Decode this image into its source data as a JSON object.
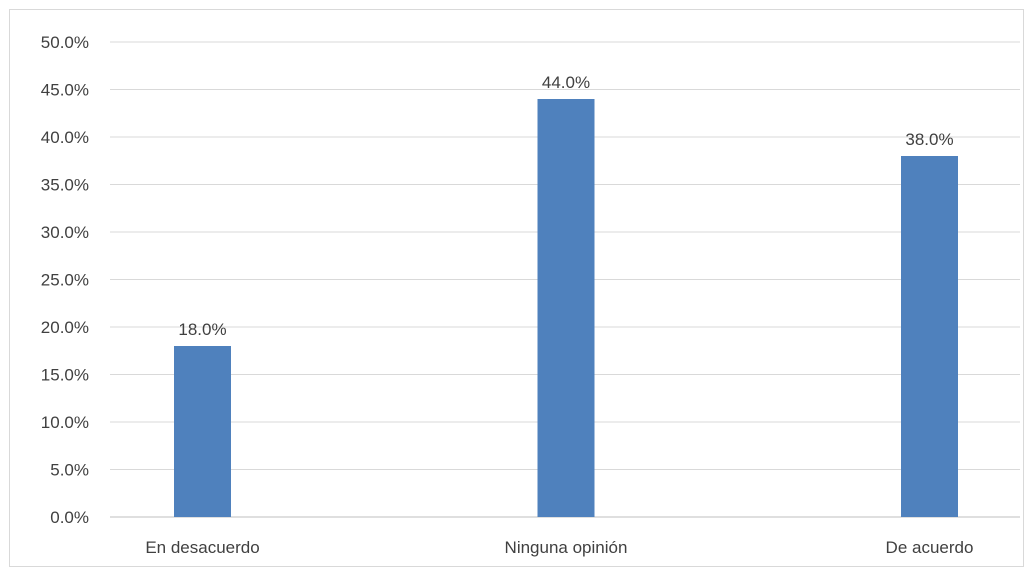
{
  "chart_data": {
    "type": "bar",
    "categories": [
      "En desacuerdo",
      "Ninguna opinión",
      "De acuerdo"
    ],
    "values": [
      18.0,
      44.0,
      38.0
    ],
    "data_labels": [
      "18.0%",
      "44.0%",
      "38.0%"
    ],
    "y_ticks": [
      "0.0%",
      "5.0%",
      "10.0%",
      "15.0%",
      "20.0%",
      "25.0%",
      "30.0%",
      "35.0%",
      "40.0%",
      "45.0%",
      "50.0%"
    ],
    "ylim": [
      0,
      50
    ],
    "y_step": 5,
    "grid": true,
    "legend": "none",
    "title": "",
    "xlabel": "",
    "ylabel": "",
    "bar_color": "#4f81bd",
    "text_color": "#404040",
    "grid_color": "#d9d9d9"
  }
}
